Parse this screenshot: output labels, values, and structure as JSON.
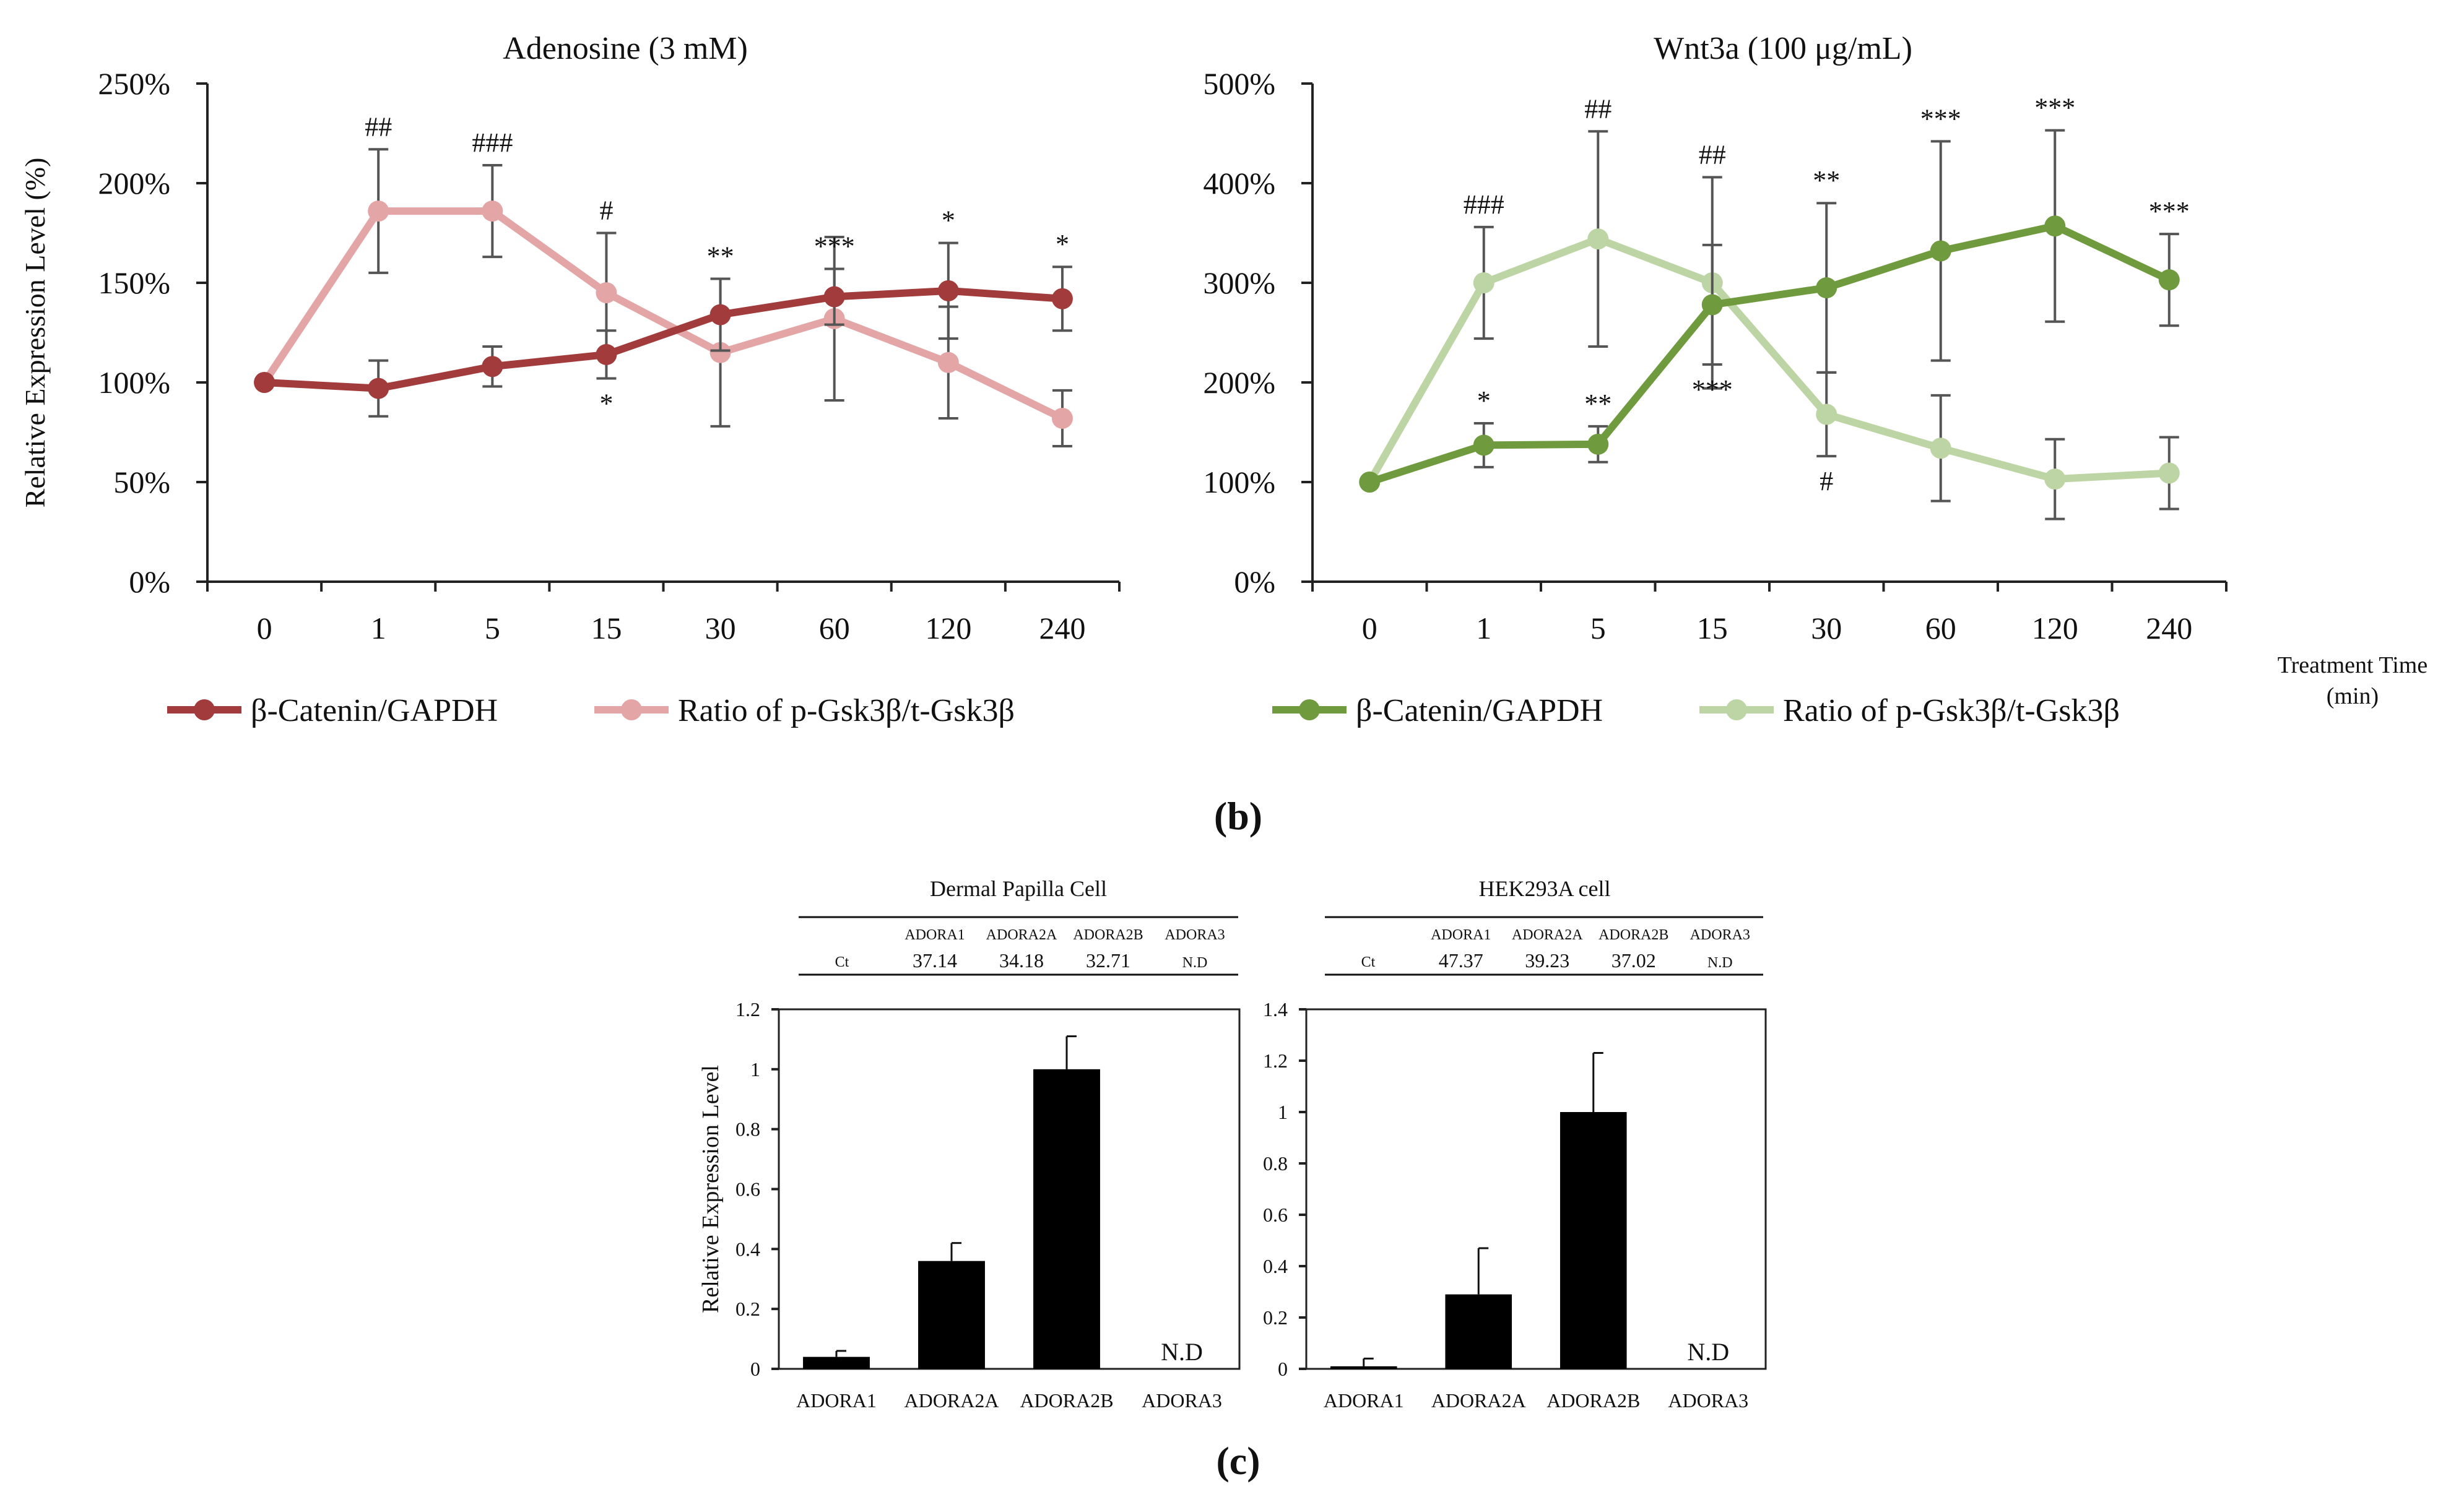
{
  "panel_labels": {
    "b": "(b)",
    "c": "(c)"
  },
  "axis_note": {
    "line1": "Treatment Time",
    "line2": "(min)"
  },
  "colors": {
    "adeno_catenin": "#a23b3b",
    "adeno_ratio": "#e3a5a5",
    "wnt_catenin": "#6f9a3e",
    "wnt_ratio": "#bdd5a4",
    "bar": "#000000"
  },
  "chart_data": [
    {
      "type": "line",
      "title": "Adenosine (3 mM)",
      "ylabel": "Relative Expression Level (%)",
      "xlabel": "",
      "categories": [
        "0",
        "1",
        "5",
        "15",
        "30",
        "60",
        "120",
        "240"
      ],
      "ylim": [
        0,
        250
      ],
      "yticks": [
        "0%",
        "50%",
        "100%",
        "150%",
        "200%",
        "250%"
      ],
      "legend": "bottom",
      "series": [
        {
          "name": "β-Catenin/GAPDH",
          "color": "#a23b3b",
          "values": [
            100,
            97,
            108,
            114,
            134,
            143,
            146,
            142
          ],
          "errors": [
            0,
            14,
            10,
            12,
            18,
            14,
            24,
            16
          ],
          "marks": [
            "",
            "",
            "",
            "*",
            "**",
            "***",
            "*",
            "*"
          ],
          "mark_side": [
            "",
            "",
            "",
            "below",
            "above",
            "above",
            "above",
            "above"
          ]
        },
        {
          "name": "Ratio of p-Gsk3β/t-Gsk3β",
          "color": "#e3a5a5",
          "values": [
            100,
            186,
            186,
            145,
            115,
            132,
            110,
            82
          ],
          "errors": [
            0,
            31,
            23,
            30,
            37,
            41,
            28,
            14
          ],
          "marks": [
            "",
            "##",
            "###",
            "#",
            "",
            "",
            "",
            ""
          ],
          "mark_side": [
            "",
            "above",
            "above",
            "above",
            "",
            "",
            "",
            ""
          ]
        }
      ]
    },
    {
      "type": "line",
      "title": "Wnt3a (100 μg/mL)",
      "ylabel": "",
      "xlabel": "Treatment Time (min)",
      "categories": [
        "0",
        "1",
        "5",
        "15",
        "30",
        "60",
        "120",
        "240"
      ],
      "ylim": [
        0,
        500
      ],
      "yticks": [
        "0%",
        "100%",
        "200%",
        "300%",
        "400%",
        "500%"
      ],
      "legend": "bottom",
      "series": [
        {
          "name": "β-Catenin/GAPDH",
          "color": "#6f9a3e",
          "values": [
            100,
            137,
            138,
            278,
            295,
            332,
            357,
            303
          ],
          "errors": [
            0,
            22,
            18,
            60,
            85,
            110,
            96,
            46
          ],
          "marks": [
            "",
            "*",
            "**",
            "***",
            "**",
            "***",
            "***",
            "***"
          ],
          "mark_side": [
            "",
            "above",
            "above",
            "below",
            "above",
            "above",
            "above",
            "above"
          ]
        },
        {
          "name": "Ratio of p-Gsk3β/t-Gsk3β",
          "color": "#bdd5a4",
          "values": [
            100,
            300,
            344,
            300,
            168,
            134,
            103,
            109
          ],
          "errors": [
            0,
            56,
            108,
            106,
            42,
            53,
            40,
            36
          ],
          "marks": [
            "",
            "###",
            "##",
            "##",
            "#",
            "",
            "",
            ""
          ],
          "mark_side": [
            "",
            "above",
            "above",
            "above",
            "below",
            "",
            "",
            ""
          ]
        }
      ]
    },
    {
      "type": "bar",
      "title": "Dermal Papilla Cell",
      "ylabel": "Relative Expression Level",
      "categories": [
        "ADORA1",
        "ADORA2A",
        "ADORA2B",
        "ADORA3"
      ],
      "values": [
        0.04,
        0.36,
        1.0,
        0
      ],
      "errors": [
        0.02,
        0.06,
        0.11,
        0
      ],
      "bar_labels": [
        "",
        "",
        "",
        "N.D"
      ],
      "ylim": [
        0,
        1.2
      ],
      "yticks": [
        "0",
        "0.2",
        "0.4",
        "0.6",
        "0.8",
        "1",
        "1.2"
      ],
      "ct_table": {
        "row_label": "Ct",
        "headers": [
          "ADORA1",
          "ADORA2A",
          "ADORA2B",
          "ADORA3"
        ],
        "values": [
          "37.14",
          "34.18",
          "32.71",
          "N.D"
        ]
      }
    },
    {
      "type": "bar",
      "title": "HEK293A cell",
      "ylabel": "",
      "categories": [
        "ADORA1",
        "ADORA2A",
        "ADORA2B",
        "ADORA3"
      ],
      "values": [
        0.01,
        0.29,
        1.0,
        0
      ],
      "errors": [
        0.03,
        0.18,
        0.23,
        0
      ],
      "bar_labels": [
        "",
        "",
        "",
        "N.D"
      ],
      "ylim": [
        0,
        1.4
      ],
      "yticks": [
        "0",
        "0.2",
        "0.4",
        "0.6",
        "0.8",
        "1",
        "1.2",
        "1.4"
      ],
      "ct_table": {
        "row_label": "Ct",
        "headers": [
          "ADORA1",
          "ADORA2A",
          "ADORA2B",
          "ADORA3"
        ],
        "values": [
          "47.37",
          "39.23",
          "37.02",
          "N.D"
        ]
      }
    }
  ]
}
